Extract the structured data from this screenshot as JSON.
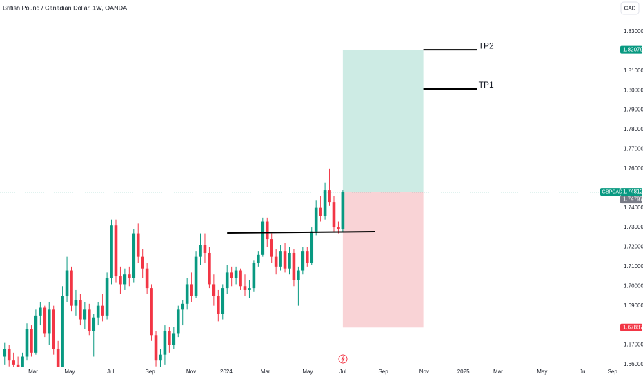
{
  "chart_data": {
    "type": "candlestick",
    "title": "British Pound / Canadian Dollar, 1W, OANDA",
    "currency": "CAD",
    "symbol": "GBPCAD",
    "up_color": "#089981",
    "down_color": "#f23645",
    "open": [
      1.664,
      1.668,
      1.662,
      1.66,
      1.658,
      1.664,
      1.678,
      1.666,
      1.685,
      1.689,
      1.676,
      1.688,
      1.668,
      1.658,
      1.695,
      1.708,
      1.69,
      1.693,
      1.683,
      1.688,
      1.677,
      1.684,
      1.69,
      1.685,
      1.704,
      1.731,
      1.705,
      1.701,
      1.706,
      1.704,
      1.727,
      1.715,
      1.709,
      1.699,
      1.675,
      1.662,
      1.665,
      1.677,
      1.67,
      1.676,
      1.688,
      1.691,
      1.701,
      1.695,
      1.715,
      1.721,
      1.717,
      1.701,
      1.695,
      1.686,
      1.699,
      1.707,
      1.704,
      1.708,
      1.7,
      1.698,
      1.699,
      1.712,
      1.716,
      1.733,
      1.724,
      1.715,
      1.71,
      1.718,
      1.709,
      1.717,
      1.703,
      1.708,
      1.718,
      1.712,
      1.728,
      1.74,
      1.736,
      1.749,
      1.743,
      1.73,
      1.729
    ],
    "high": [
      1.671,
      1.67,
      1.666,
      1.664,
      1.666,
      1.681,
      1.68,
      1.688,
      1.692,
      1.69,
      1.692,
      1.69,
      1.672,
      1.7,
      1.715,
      1.71,
      1.698,
      1.696,
      1.692,
      1.691,
      1.686,
      1.692,
      1.696,
      1.707,
      1.734,
      1.734,
      1.71,
      1.709,
      1.71,
      1.729,
      1.732,
      1.719,
      1.712,
      1.701,
      1.677,
      1.668,
      1.68,
      1.679,
      1.679,
      1.69,
      1.693,
      1.704,
      1.707,
      1.718,
      1.727,
      1.727,
      1.72,
      1.706,
      1.698,
      1.701,
      1.711,
      1.71,
      1.71,
      1.709,
      1.706,
      1.703,
      1.713,
      1.718,
      1.735,
      1.735,
      1.727,
      1.719,
      1.721,
      1.722,
      1.72,
      1.719,
      1.71,
      1.72,
      1.72,
      1.73,
      1.744,
      1.746,
      1.753,
      1.76,
      1.746,
      1.733,
      1.749
    ],
    "low": [
      1.66,
      1.659,
      1.656,
      1.656,
      1.656,
      1.662,
      1.664,
      1.665,
      1.68,
      1.674,
      1.67,
      1.665,
      1.655,
      1.656,
      1.692,
      1.687,
      1.685,
      1.68,
      1.678,
      1.675,
      1.664,
      1.68,
      1.682,
      1.683,
      1.701,
      1.702,
      1.696,
      1.698,
      1.7,
      1.702,
      1.712,
      1.704,
      1.696,
      1.672,
      1.659,
      1.655,
      1.66,
      1.666,
      1.668,
      1.674,
      1.68,
      1.688,
      1.692,
      1.694,
      1.711,
      1.712,
      1.699,
      1.69,
      1.682,
      1.683,
      1.696,
      1.7,
      1.701,
      1.698,
      1.695,
      1.694,
      1.697,
      1.71,
      1.715,
      1.72,
      1.712,
      1.706,
      1.708,
      1.707,
      1.706,
      1.7,
      1.69,
      1.706,
      1.71,
      1.711,
      1.726,
      1.733,
      1.734,
      1.741,
      1.728,
      1.727,
      1.728
    ],
    "close": [
      1.668,
      1.662,
      1.66,
      1.658,
      1.664,
      1.678,
      1.666,
      1.685,
      1.689,
      1.676,
      1.688,
      1.668,
      1.658,
      1.695,
      1.708,
      1.69,
      1.693,
      1.683,
      1.688,
      1.677,
      1.684,
      1.69,
      1.685,
      1.704,
      1.731,
      1.705,
      1.701,
      1.706,
      1.704,
      1.727,
      1.715,
      1.709,
      1.699,
      1.675,
      1.662,
      1.665,
      1.677,
      1.67,
      1.676,
      1.688,
      1.691,
      1.701,
      1.695,
      1.715,
      1.721,
      1.717,
      1.701,
      1.695,
      1.686,
      1.699,
      1.707,
      1.704,
      1.708,
      1.7,
      1.698,
      1.699,
      1.712,
      1.716,
      1.733,
      1.724,
      1.715,
      1.71,
      1.718,
      1.709,
      1.717,
      1.703,
      1.708,
      1.718,
      1.712,
      1.728,
      1.74,
      1.736,
      1.749,
      1.743,
      1.73,
      1.729,
      1.7481
    ],
    "xlim": [
      -1.05,
      138.2
    ],
    "xticks": [
      {
        "value": 6.4,
        "label": "Mar"
      },
      {
        "value": 14.6,
        "label": "May"
      },
      {
        "value": 23.8,
        "label": "Jul"
      },
      {
        "value": 32.7,
        "label": "Sep"
      },
      {
        "value": 41.9,
        "label": "Nov"
      },
      {
        "value": 49.8,
        "label": "2024"
      },
      {
        "value": 58.6,
        "label": "Mar"
      },
      {
        "value": 68.1,
        "label": "May"
      },
      {
        "value": 76,
        "label": "Jul"
      },
      {
        "value": 85.1,
        "label": "Sep"
      },
      {
        "value": 94.3,
        "label": "Nov"
      },
      {
        "value": 103.1,
        "label": "2025"
      },
      {
        "value": 110.9,
        "label": "Mar"
      },
      {
        "value": 120.8,
        "label": "May"
      },
      {
        "value": 130,
        "label": "Jul"
      },
      {
        "value": 136.6,
        "label": "Sep"
      }
    ],
    "ylim": [
      1.6589,
      1.8462
    ],
    "yticks": [
      {
        "value": 1.66,
        "label": "1.66000"
      },
      {
        "value": 1.67,
        "label": "1.67000"
      },
      {
        "value": 1.69,
        "label": "1.69000"
      },
      {
        "value": 1.7,
        "label": "1.70000"
      },
      {
        "value": 1.71,
        "label": "1.71000"
      },
      {
        "value": 1.72,
        "label": "1.72000"
      },
      {
        "value": 1.73,
        "label": "1.73000"
      },
      {
        "value": 1.74,
        "label": "1.74000"
      },
      {
        "value": 1.76,
        "label": "1.76000"
      },
      {
        "value": 1.77,
        "label": "1.77000"
      },
      {
        "value": 1.78,
        "label": "1.78000"
      },
      {
        "value": 1.79,
        "label": "1.79000"
      },
      {
        "value": 1.8,
        "label": "1.80000"
      },
      {
        "value": 1.81,
        "label": "1.81000"
      },
      {
        "value": 1.83,
        "label": "1.83000"
      }
    ],
    "position": {
      "x_start": 76,
      "x_end": 94.1,
      "entry": 1.74812,
      "target": 1.82079,
      "stop": 1.67887,
      "profit_color": "#cdebe4",
      "loss_color": "#f9d3d6"
    },
    "support_line": {
      "x": [
        50,
        83.2
      ],
      "y": [
        1.7272,
        1.7279
      ]
    },
    "targets": [
      {
        "name": "TP2",
        "x": [
          94.1,
          106.2
        ],
        "y": 1.82079
      },
      {
        "name": "TP1",
        "x": [
          94.1,
          106.2
        ],
        "y": 1.8008
      }
    ],
    "price_badges": [
      {
        "value": 1.82079,
        "color": "#089981"
      },
      {
        "value": 1.74812,
        "color": "#089981"
      },
      {
        "value": 1.74797,
        "color": "#787b86"
      },
      {
        "value": 1.67887,
        "color": "#f23645"
      }
    ]
  }
}
